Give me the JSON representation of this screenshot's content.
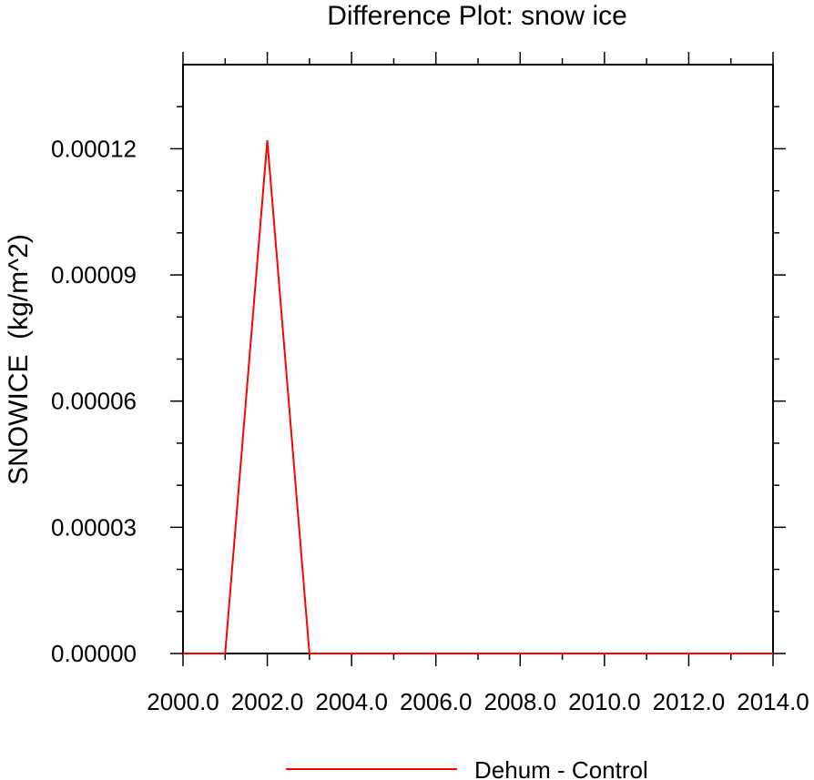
{
  "chart_data": {
    "type": "line",
    "title": "Difference Plot: snow ice",
    "xlabel": "",
    "ylabel": "SNOWICE  (kg/m^2)",
    "xlim": [
      2000,
      2014
    ],
    "ylim": [
      0,
      0.00014
    ],
    "x_ticks": [
      2000,
      2002,
      2004,
      2006,
      2008,
      2010,
      2012,
      2014
    ],
    "x_tick_labels": [
      "2000.0",
      "2002.0",
      "2004.0",
      "2006.0",
      "2008.0",
      "2010.0",
      "2012.0",
      "2014.0"
    ],
    "y_ticks": [
      0,
      3e-05,
      6e-05,
      9e-05,
      0.00012
    ],
    "y_tick_labels": [
      "0.00000",
      "0.00003",
      "0.00006",
      "0.00009",
      "0.00012"
    ],
    "grid": false,
    "legend_position": "bottom-center",
    "series": [
      {
        "name": "Dehum - Control",
        "color": "#ff0000",
        "x": [
          2000,
          2001,
          2002,
          2003,
          2004,
          2005,
          2006,
          2007,
          2008,
          2009,
          2010,
          2011,
          2012,
          2013,
          2014
        ],
        "y": [
          0,
          0,
          0.000122,
          0,
          0,
          0,
          0,
          0,
          0,
          0,
          0,
          0,
          0,
          0,
          0
        ]
      }
    ]
  }
}
